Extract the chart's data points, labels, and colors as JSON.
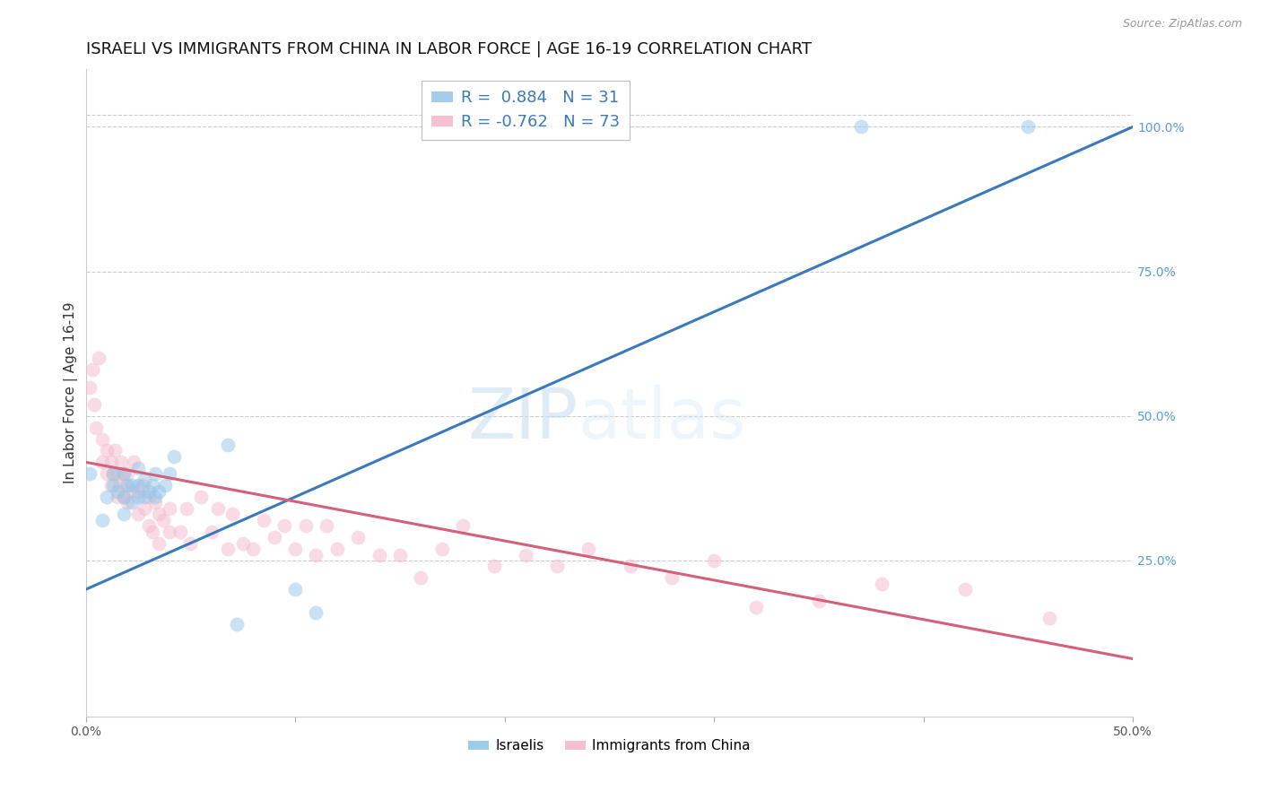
{
  "title": "ISRAELI VS IMMIGRANTS FROM CHINA IN LABOR FORCE | AGE 16-19 CORRELATION CHART",
  "source": "Source: ZipAtlas.com",
  "ylabel": "In Labor Force | Age 16-19",
  "xlim": [
    0.0,
    0.5
  ],
  "ylim": [
    -0.02,
    1.1
  ],
  "x_tick_pos": [
    0.0,
    0.1,
    0.2,
    0.3,
    0.4,
    0.5
  ],
  "x_tick_labels": [
    "0.0%",
    "",
    "",
    "",
    "",
    "50.0%"
  ],
  "y_ticks_right": [
    0.0,
    0.25,
    0.5,
    0.75,
    1.0
  ],
  "y_tick_labels_right": [
    "",
    "25.0%",
    "50.0%",
    "75.0%",
    "100.0%"
  ],
  "blue_color": "#93c6e8",
  "blue_line_color": "#3a7aba",
  "pink_color": "#f5b8cc",
  "pink_line_color": "#d4607a",
  "watermark": "ZIPatlas",
  "blue_line_x": [
    0.0,
    0.5
  ],
  "blue_line_y": [
    0.2,
    1.0
  ],
  "pink_line_x": [
    0.0,
    0.5
  ],
  "pink_line_y": [
    0.42,
    0.08
  ],
  "israelis_x": [
    0.002,
    0.008,
    0.01,
    0.013,
    0.013,
    0.015,
    0.018,
    0.018,
    0.018,
    0.02,
    0.022,
    0.022,
    0.025,
    0.025,
    0.025,
    0.028,
    0.028,
    0.03,
    0.032,
    0.033,
    0.033,
    0.035,
    0.038,
    0.04,
    0.042,
    0.068,
    0.072,
    0.1,
    0.11,
    0.37,
    0.45
  ],
  "israelis_y": [
    0.4,
    0.32,
    0.36,
    0.38,
    0.4,
    0.37,
    0.33,
    0.36,
    0.4,
    0.38,
    0.35,
    0.38,
    0.36,
    0.38,
    0.41,
    0.36,
    0.39,
    0.37,
    0.38,
    0.36,
    0.4,
    0.37,
    0.38,
    0.4,
    0.43,
    0.45,
    0.14,
    0.2,
    0.16,
    1.0,
    1.0
  ],
  "china_x": [
    0.002,
    0.003,
    0.004,
    0.005,
    0.006,
    0.008,
    0.008,
    0.01,
    0.01,
    0.012,
    0.012,
    0.013,
    0.014,
    0.015,
    0.015,
    0.016,
    0.017,
    0.018,
    0.018,
    0.019,
    0.02,
    0.02,
    0.022,
    0.023,
    0.025,
    0.025,
    0.027,
    0.028,
    0.03,
    0.03,
    0.032,
    0.033,
    0.035,
    0.035,
    0.037,
    0.04,
    0.04,
    0.045,
    0.048,
    0.05,
    0.055,
    0.06,
    0.063,
    0.068,
    0.07,
    0.075,
    0.08,
    0.085,
    0.09,
    0.095,
    0.1,
    0.105,
    0.11,
    0.115,
    0.12,
    0.13,
    0.14,
    0.15,
    0.16,
    0.17,
    0.18,
    0.195,
    0.21,
    0.225,
    0.24,
    0.26,
    0.28,
    0.3,
    0.32,
    0.35,
    0.38,
    0.42,
    0.46
  ],
  "china_y": [
    0.55,
    0.58,
    0.52,
    0.48,
    0.6,
    0.42,
    0.46,
    0.4,
    0.44,
    0.38,
    0.42,
    0.4,
    0.44,
    0.36,
    0.4,
    0.38,
    0.42,
    0.36,
    0.4,
    0.38,
    0.35,
    0.4,
    0.37,
    0.42,
    0.33,
    0.37,
    0.38,
    0.34,
    0.31,
    0.36,
    0.3,
    0.35,
    0.28,
    0.33,
    0.32,
    0.3,
    0.34,
    0.3,
    0.34,
    0.28,
    0.36,
    0.3,
    0.34,
    0.27,
    0.33,
    0.28,
    0.27,
    0.32,
    0.29,
    0.31,
    0.27,
    0.31,
    0.26,
    0.31,
    0.27,
    0.29,
    0.26,
    0.26,
    0.22,
    0.27,
    0.31,
    0.24,
    0.26,
    0.24,
    0.27,
    0.24,
    0.22,
    0.25,
    0.17,
    0.18,
    0.21,
    0.2,
    0.15
  ],
  "marker_size": 130,
  "alpha": 0.5,
  "grid_color": "#cccccc",
  "bg_color": "#ffffff",
  "title_fontsize": 13,
  "label_fontsize": 11,
  "tick_fontsize": 10,
  "right_tick_color": "#5b9bd5"
}
